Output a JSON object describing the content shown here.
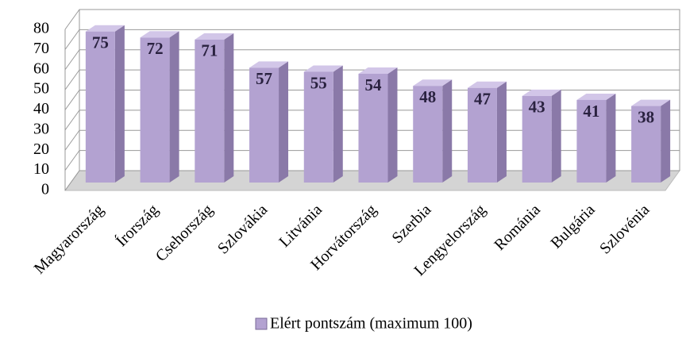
{
  "chart_data": {
    "type": "bar3d",
    "categories": [
      "Magyarország",
      "Írország",
      "Csehország",
      "Szlovákia",
      "Litvánia",
      "Horvátország",
      "Szerbia",
      "Lengyelország",
      "Románia",
      "Bulgária",
      "Szlovénia"
    ],
    "series": [
      {
        "name": "Elért pontszám (maximum 100)",
        "color": "#b3a2d1",
        "values": [
          75,
          72,
          71,
          57,
          55,
          54,
          48,
          47,
          43,
          41,
          38
        ]
      }
    ],
    "ylim": [
      0,
      80
    ],
    "yticks": [
      0,
      10,
      20,
      30,
      40,
      50,
      60,
      70,
      80
    ],
    "grid": true,
    "legend": "bottom"
  }
}
